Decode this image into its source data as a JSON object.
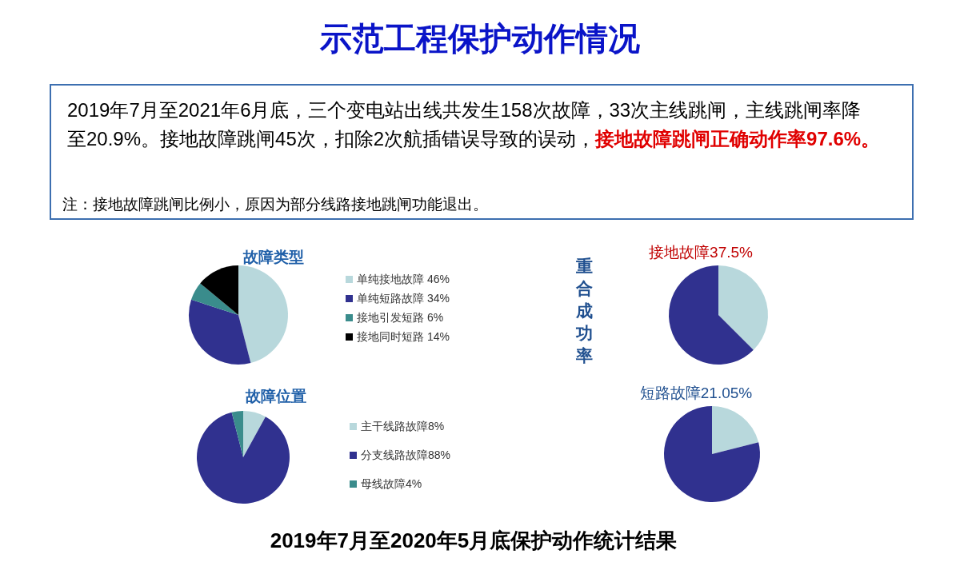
{
  "chart_data": [
    {
      "type": "other",
      "title": "示范工程保护动作情况",
      "annotations": [
        "2019年7月至2021年6月底，三个变电站出线共发生158次故障，33次主线跳闸，主线跳闸率降至20.9%。接地故障跳闸45次，扣除2次航插错误导致的误动，",
        "接地故障跳闸正确动作率97.6%。",
        "注：接地故障跳闸比例小，原因为部分线路接地跳闸功能退出。",
        "2019年7月至2020年5月底保护动作统计结果"
      ]
    },
    {
      "type": "pie",
      "title": "故障类型",
      "categories": [
        "单纯接地故障 46%",
        "单纯短路故障 34%",
        "接地引发短路  6%",
        "接地同时短路 14%"
      ],
      "values": [
        46,
        34,
        6,
        14
      ],
      "colors": [
        "#b8d8dc",
        "#30318f",
        "#3a8c8c",
        "#000000"
      ],
      "legend": "right"
    },
    {
      "type": "pie",
      "title": "故障位置",
      "categories": [
        "主干线路故障8%",
        "分支线路故障88%",
        "母线故障4%"
      ],
      "values": [
        8,
        88,
        4
      ],
      "colors": [
        "#b8d8dc",
        "#30318f",
        "#3a8c8c"
      ],
      "legend": "right"
    },
    {
      "type": "pie",
      "title": "接地故障37.5%",
      "categories": [
        null,
        null
      ],
      "values": [
        37.5,
        62.5
      ],
      "colors": [
        "#b8d8dc",
        "#30318f"
      ],
      "annotations": [
        "重合成功率"
      ]
    },
    {
      "type": "pie",
      "title": "短路故障21.05%",
      "categories": [
        null,
        null
      ],
      "values": [
        21.05,
        78.95
      ],
      "colors": [
        "#b8d8dc",
        "#30318f"
      ]
    }
  ]
}
